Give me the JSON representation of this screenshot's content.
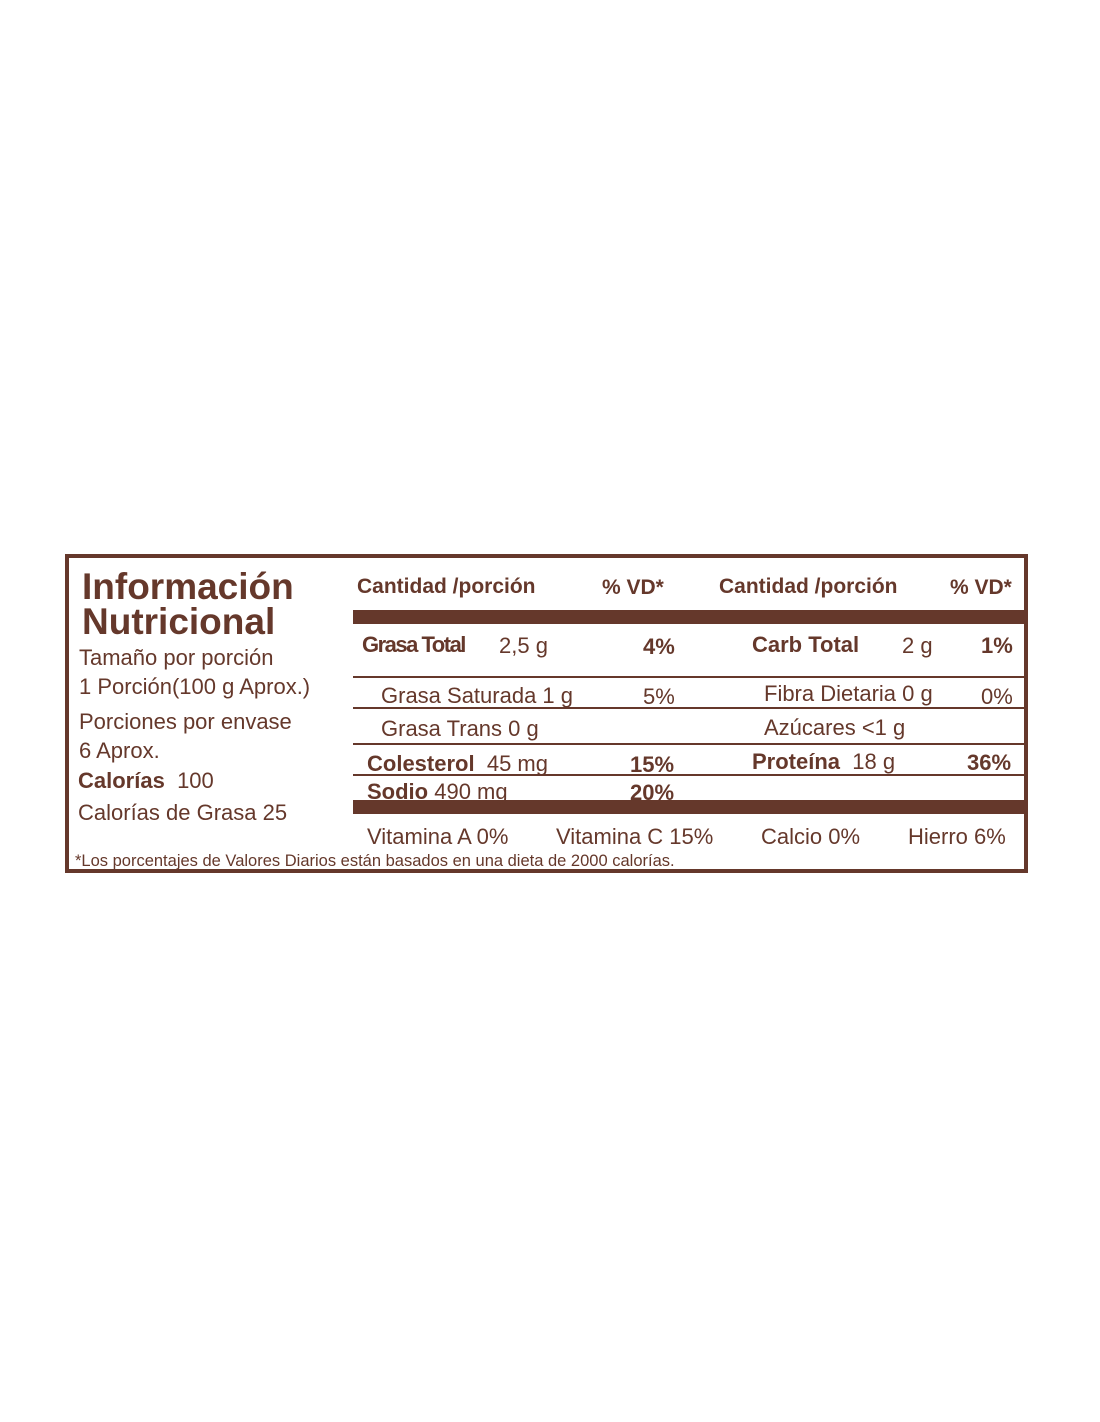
{
  "title": {
    "line1": "Información",
    "line2": "Nutricional"
  },
  "serving": {
    "size_label": "Tamaño por porción",
    "size_value": "1 Porción(100 g Aprox.)",
    "servings_label": "Porciones por envase",
    "servings_value": "6 Aprox.",
    "calories_label": "Calorías",
    "calories_value": "100",
    "fat_calories": "Calorías de Grasa 25"
  },
  "headers": {
    "amount_left": "Cantidad /porción",
    "dv_left": "% VD*",
    "amount_right": "Cantidad /porción",
    "dv_right": "% VD*"
  },
  "nutrients": {
    "total_fat": {
      "name": "Grasa Total",
      "amount": "2,5 g",
      "dv": "4%"
    },
    "sat_fat": {
      "name": "Grasa Saturada 1 g",
      "dv": "5%"
    },
    "trans_fat": {
      "name": "Grasa Trans 0 g"
    },
    "cholesterol": {
      "name": "Colesterol",
      "amount": "45 mg",
      "dv": "15%"
    },
    "sodium": {
      "name": "Sodio",
      "amount": "490 mg",
      "dv": "20%"
    },
    "carb": {
      "name": "Carb Total",
      "amount": "2 g",
      "dv": "1%"
    },
    "fiber": {
      "name": "Fibra Dietaria 0 g",
      "dv": "0%"
    },
    "sugars": {
      "name": "Azúcares <1 g"
    },
    "protein": {
      "name": "Proteína",
      "amount": "18 g",
      "dv": "36%"
    }
  },
  "vitamins": [
    "Vitamina A 0%",
    "Vitamina C 15%",
    "Calcio 0%",
    "Hierro 6%"
  ],
  "footnote": "*Los porcentajes de Valores Diarios están basados en una dieta de 2000 calorías.",
  "colors": {
    "brand": "#65382b"
  }
}
